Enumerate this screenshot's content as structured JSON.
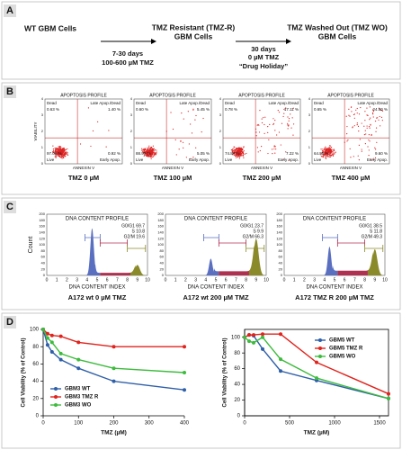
{
  "panel_a": {
    "label": "A",
    "wt": "WT GBM Cells",
    "tmz_r": [
      "TMZ Resistant (TMZ-R)",
      "GBM Cells"
    ],
    "step1": [
      "7-30 days",
      "100-600 µM TMZ"
    ],
    "tmz_wo": [
      "TMZ Washed Out  (TMZ WO)",
      "GBM Cells"
    ],
    "step2": [
      "30 days",
      "0 µM TMZ"
    ],
    "holiday": "“Drug Holiday”"
  },
  "panel_b": {
    "label": "B",
    "axis_x": "ANNEXIN V",
    "axis_y": "VIABILITY",
    "yticks": [
      "0",
      "1",
      "2",
      "3",
      "4"
    ],
    "plots": [
      {
        "header": "APOPTOSIS PROFILE",
        "dead": "Dead",
        "dead_pct": "0.63 %",
        "late": "Late Apop./Dead",
        "late_pct": "1.40 %",
        "live": "Live",
        "live_pct": "97.05 %",
        "early": "Early Apop.",
        "early_pct": "0.92 %",
        "caption": "TMZ 0 µM"
      },
      {
        "header": "APOPTOSIS PROFILE",
        "dead": "Dead",
        "dead_pct": "0.60 %",
        "late": "Late Apop./Dead",
        "late_pct": "5.45 %",
        "live": "Live",
        "live_pct": "88.90 %",
        "early": "Early Apop.",
        "early_pct": "5.05 %",
        "caption": "TMZ 100 µM"
      },
      {
        "header": "APOPTOSIS PROFILE",
        "dead": "Dead",
        "dead_pct": "0.78 %",
        "late": "Late Apop./Dead",
        "late_pct": "17.11 %",
        "live": "Live",
        "live_pct": "74.89 %",
        "early": "Early Apop.",
        "early_pct": "7.22 %",
        "caption": "TMZ 200 µM"
      },
      {
        "header": "APOPTOSIS PROFILE",
        "dead": "Dead",
        "dead_pct": "0.65 %",
        "late": "Late Apop./Dead",
        "late_pct": "24.90 %",
        "live": "Live",
        "live_pct": "64.85 %",
        "early": "Early Apop.",
        "early_pct": "9.60 %",
        "caption": "TMZ 400 µM"
      }
    ]
  },
  "panel_c": {
    "label": "C",
    "axis_x": "DNA CONTENT INDEX",
    "axis_y": "Count",
    "xticks": [
      "0",
      "1",
      "2",
      "3",
      "4",
      "5",
      "6",
      "7",
      "8",
      "9",
      "10"
    ],
    "yticks": [
      "0",
      "20",
      "40",
      "60",
      "80",
      "100",
      "120",
      "140",
      "160",
      "180",
      "200"
    ],
    "plots": [
      {
        "header": "DNA CONTENT PROFILE",
        "g0g1": "G0/G1 69.7",
        "s": "S 10.8",
        "g2m": "G2/M 19.6",
        "caption": "A172 wt  0 µM TMZ"
      },
      {
        "header": "DNA CONTENT PROFILE",
        "g0g1": "G0/G1 23.7",
        "s": "S 9.9",
        "g2m": "G2/M 66.3",
        "caption": "A172 wt  200 µM TMZ"
      },
      {
        "header": "DNA CONTENT PROFILE",
        "g0g1": "G0/G1 38.5",
        "s": "S 11.8",
        "g2m": "G2/M 49.3",
        "caption": "A172 TMZ R  200 µM TMZ"
      }
    ]
  },
  "panel_d": {
    "label": "D"
  },
  "chart_data": [
    {
      "type": "line",
      "xlabel": "TMZ (µM)",
      "ylabel": "Cell Viability (% of Control)",
      "x": [
        0,
        12.5,
        25,
        50,
        100,
        200,
        400
      ],
      "xlim": [
        0,
        400
      ],
      "xticks": [
        0,
        100,
        200,
        300,
        400
      ],
      "ylim": [
        0,
        100
      ],
      "yticks": [
        0,
        20,
        40,
        60,
        80,
        100
      ],
      "legend": "lower left",
      "box": false,
      "series": [
        {
          "name": "GBM3 WT",
          "color": "#2e5fa8",
          "values": [
            100,
            82,
            74,
            65,
            55,
            40,
            30
          ]
        },
        {
          "name": "GBM3 TMZ R",
          "color": "#e0231c",
          "values": [
            100,
            95,
            93,
            92,
            85,
            80,
            80
          ]
        },
        {
          "name": "GBM3 WO",
          "color": "#3dbb3d",
          "values": [
            100,
            90,
            85,
            72,
            65,
            55,
            50
          ]
        }
      ]
    },
    {
      "type": "line",
      "xlabel": "TMZ (µM)",
      "ylabel": "Cell Viability (% of Control)",
      "x": [
        0,
        50,
        100,
        200,
        400,
        800,
        1600
      ],
      "xlim": [
        0,
        1600
      ],
      "xticks": [
        0,
        500,
        1000,
        1500
      ],
      "ylim": [
        0,
        110
      ],
      "yticks": [
        0,
        20,
        40,
        60,
        80,
        100
      ],
      "legend": "upper right",
      "box": true,
      "series": [
        {
          "name": "GBM5 WT",
          "color": "#2e5fa8",
          "values": [
            100,
            103,
            102,
            85,
            57,
            45,
            22
          ]
        },
        {
          "name": "GBM5 TMZ R",
          "color": "#e0231c",
          "values": [
            100,
            103,
            103,
            104,
            104,
            68,
            28
          ]
        },
        {
          "name": "GBM5 WO",
          "color": "#3dbb3d",
          "values": [
            100,
            95,
            93,
            100,
            72,
            48,
            22
          ]
        }
      ]
    }
  ]
}
